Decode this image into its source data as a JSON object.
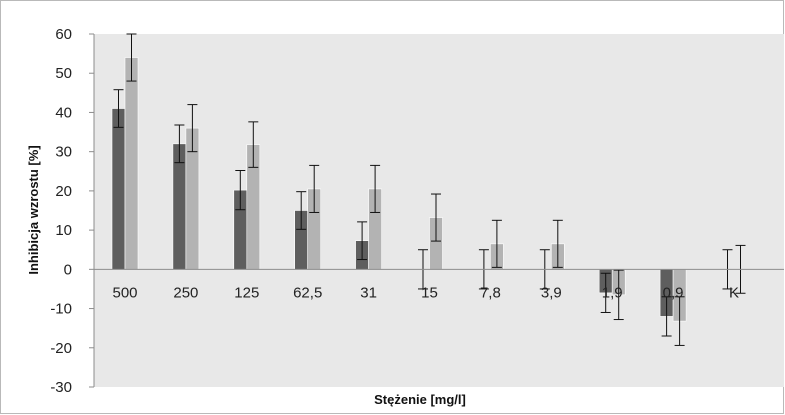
{
  "chart_data": {
    "type": "bar",
    "title": "",
    "xlabel": "Stężenie [mg/l]",
    "ylabel": "Inhibicja wzrostu [%]",
    "ylim": [
      -30,
      60
    ],
    "yticks": [
      60,
      50,
      40,
      30,
      20,
      10,
      0,
      -10,
      -20,
      -30
    ],
    "grid": false,
    "legend": "none",
    "categories": [
      "500",
      "250",
      "125",
      "62,5",
      "31",
      "15",
      "7,8",
      "3,9",
      "1,9",
      "0,9",
      "K"
    ],
    "series": [
      {
        "color": "#5e5e5e",
        "values": [
          41,
          32,
          20.2,
          15,
          7.3,
          0,
          0,
          0,
          -6,
          -12,
          0
        ],
        "errors": [
          4.8,
          4.8,
          5,
          4.8,
          4.8,
          5,
          5,
          5,
          5,
          5,
          5
        ]
      },
      {
        "color": "#b3b3b3",
        "values": [
          54,
          36,
          31.8,
          20.5,
          20.5,
          13.2,
          6.5,
          6.5,
          -6.5,
          -13.2,
          0
        ],
        "errors": [
          6,
          6,
          5.8,
          6,
          6,
          6,
          6,
          6,
          6.3,
          6.2,
          6.1
        ]
      }
    ]
  }
}
